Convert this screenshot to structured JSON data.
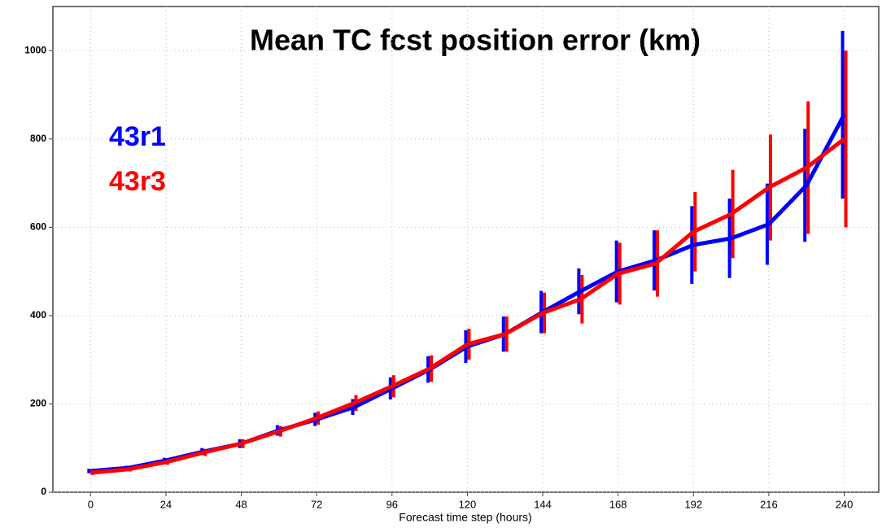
{
  "chart_data": {
    "type": "line",
    "title": "Mean TC fcst position error (km)",
    "x_label": "Forecast time step (hours)",
    "x": [
      0,
      12,
      24,
      36,
      48,
      60,
      72,
      84,
      96,
      108,
      120,
      132,
      144,
      156,
      168,
      180,
      192,
      204,
      216,
      228,
      240
    ],
    "series": [
      {
        "name": "43r1",
        "color": "#0000ff",
        "values": [
          48,
          55,
          72,
          92,
          110,
          140,
          165,
          193,
          235,
          278,
          330,
          358,
          408,
          455,
          500,
          525,
          560,
          575,
          607,
          695,
          855
        ],
        "errors": [
          5,
          5,
          6,
          8,
          10,
          12,
          15,
          18,
          25,
          30,
          37,
          40,
          48,
          52,
          70,
          68,
          88,
          90,
          92,
          128,
          190
        ]
      },
      {
        "name": "43r3",
        "color": "#ff0000",
        "values": [
          44,
          52,
          68,
          90,
          110,
          138,
          168,
          202,
          240,
          280,
          335,
          358,
          406,
          437,
          495,
          518,
          590,
          630,
          690,
          735,
          800
        ],
        "errors": [
          5,
          5,
          6,
          8,
          10,
          12,
          15,
          18,
          25,
          30,
          35,
          40,
          46,
          55,
          70,
          75,
          90,
          100,
          120,
          150,
          200
        ]
      }
    ],
    "xlim": [
      -12,
      251
    ],
    "ylim": [
      0,
      1100
    ],
    "xticks": [
      0,
      24,
      48,
      72,
      96,
      120,
      144,
      168,
      192,
      216,
      240
    ],
    "yticks": [
      0,
      200,
      400,
      600,
      800,
      1000
    ],
    "grid": true
  }
}
